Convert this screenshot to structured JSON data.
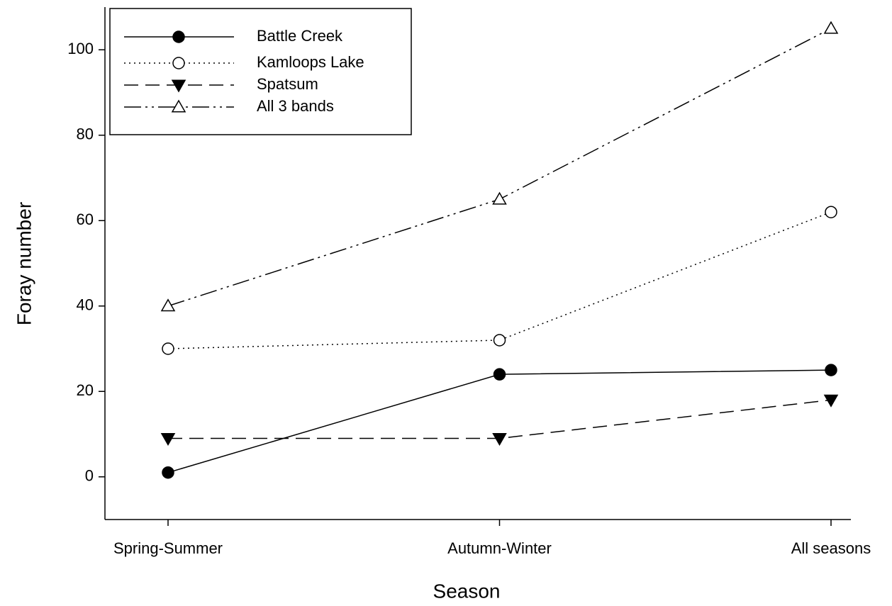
{
  "chart_data": {
    "type": "line",
    "x_label": "Season",
    "y_label": "Foray number",
    "categories": [
      "Spring-Summer",
      "Autumn-Winter",
      "All seasons"
    ],
    "series": [
      {
        "name": "Battle Creek",
        "color": "#000000",
        "dash": "solid",
        "marker": "circle-filled",
        "values": [
          1,
          24,
          25
        ]
      },
      {
        "name": "Kamloops Lake",
        "color": "#000000",
        "dash": "dotted",
        "marker": "circle-open",
        "values": [
          30,
          32,
          62
        ]
      },
      {
        "name": "Spatsum",
        "color": "#000000",
        "dash": "dashed",
        "marker": "triangle-down-filled",
        "values": [
          9,
          9,
          18
        ]
      },
      {
        "name": "All 3 bands",
        "color": "#000000",
        "dash": "dash-dot-dot",
        "marker": "triangle-up-open",
        "values": [
          40,
          65,
          105
        ]
      }
    ],
    "ylim": [
      -10,
      110
    ],
    "yticks": [
      0,
      20,
      40,
      60,
      80,
      100
    ],
    "grid": false,
    "legend": "upper left"
  }
}
